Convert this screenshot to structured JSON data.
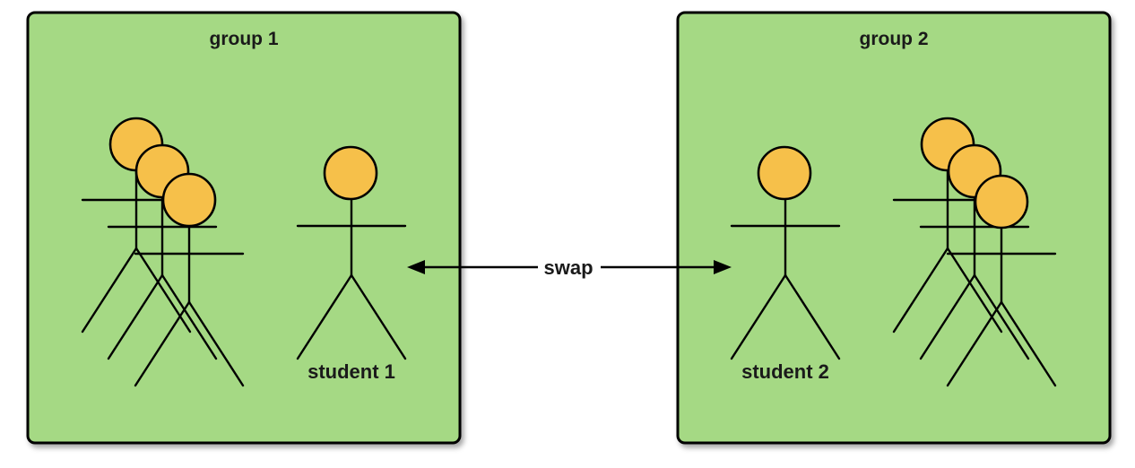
{
  "groups": [
    {
      "title": "group 1"
    },
    {
      "title": "group 2"
    }
  ],
  "students": [
    {
      "label": "student 1"
    },
    {
      "label": "student 2"
    }
  ],
  "swap": {
    "label": "swap"
  },
  "colors": {
    "group_fill": "#a5d984",
    "head_fill": "#f6c04a",
    "outline": "#000000"
  },
  "icons": [
    "person-icon",
    "double-headed-arrow-icon"
  ]
}
